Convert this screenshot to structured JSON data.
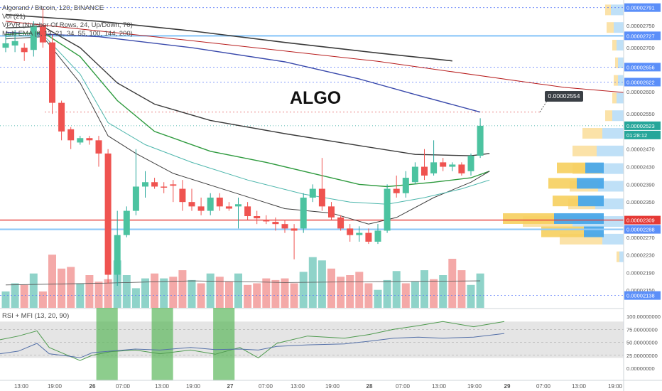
{
  "header": {
    "symbol_line": "Algorand / Bitcoin, 120, BINANCE",
    "vol_line": "Vol (21)",
    "vpvr_line": "VPVR (Number Of Rows, 24, Up/Down, 70)",
    "ma_line": "Multi EMA (8, 13, 21, 34, 55, 100, 144, 200)",
    "rsi_line": "RSI + MFI (13, 20, 90)"
  },
  "annotation": {
    "text": "ALGO",
    "callout_value": "0.00002554"
  },
  "colors": {
    "up": "#26a69a",
    "up_fill": "#4cc3a0",
    "down": "#ef5350",
    "vol_up": "#8fd3c9",
    "vol_down": "#f4a9a8",
    "support_line": "#e53935",
    "blue_line": "#90caf9",
    "dotted_red": "#e57373",
    "dotted_blue": "#5c7cfa",
    "rsi_line": "#4e9a4e",
    "mfi_line": "#5470a8"
  },
  "chart_data": [
    {
      "type": "candlestick",
      "title": "Algorand / Bitcoin, 120, BINANCE",
      "ylim": [
        2.11e-05,
        2.805e-05
      ],
      "price_axis_ticks": [
        "0.00002750",
        "0.00002700",
        "0.00002600",
        "0.00002550",
        "0.00002470",
        "0.00002430",
        "0.00002390",
        "0.00002350",
        "0.00002270",
        "0.00002230",
        "0.00002190",
        "0.00002150"
      ],
      "highlighted_levels": [
        {
          "label": "0.00002791",
          "value": 2.791e-05
        },
        {
          "label": "0.00002727",
          "value": 2.727e-05
        },
        {
          "label": "0.00002656",
          "value": 2.656e-05
        },
        {
          "label": "0.00002622",
          "value": 2.622e-05
        },
        {
          "label": "0.00002554",
          "value": 2.554e-05
        },
        {
          "label": "0.00002523",
          "value": 2.523e-05
        },
        {
          "label": "01:28:12",
          "value": 2.502e-05
        },
        {
          "label": "0.00002309",
          "value": 2.309e-05
        },
        {
          "label": "0.00002288",
          "value": 2.288e-05
        },
        {
          "label": "0.00002138",
          "value": 2.138e-05
        }
      ],
      "x_tick_labels": [
        "13:00",
        "19:00",
        "26",
        "07:00",
        "13:00",
        "19:00",
        "27",
        "07:00",
        "13:00",
        "19:00",
        "28",
        "07:00",
        "13:00",
        "19:00",
        "29",
        "07:00",
        "13:00",
        "19:00"
      ],
      "candles": [
        {
          "o": 2.7e-05,
          "h": 2.73e-05,
          "l": 2.69e-05,
          "c": 2.71e-05
        },
        {
          "o": 2.705e-05,
          "h": 2.74e-05,
          "l": 2.69e-05,
          "c": 2.715e-05
        },
        {
          "o": 2.7e-05,
          "h": 2.71e-05,
          "l": 2.67e-05,
          "c": 2.69e-05
        },
        {
          "o": 2.695e-05,
          "h": 2.76e-05,
          "l": 2.68e-05,
          "c": 2.75e-05
        },
        {
          "o": 2.75e-05,
          "h": 2.79e-05,
          "l": 2.7e-05,
          "c": 2.712e-05
        },
        {
          "o": 2.712e-05,
          "h": 2.73e-05,
          "l": 2.55e-05,
          "c": 2.575e-05
        },
        {
          "o": 2.575e-05,
          "h": 2.58e-05,
          "l": 2.49e-05,
          "c": 2.51e-05
        },
        {
          "o": 2.515e-05,
          "h": 2.52e-05,
          "l": 2.47e-05,
          "c": 2.49e-05
        },
        {
          "o": 2.485e-05,
          "h": 2.5e-05,
          "l": 2.48e-05,
          "c": 2.495e-05
        },
        {
          "o": 2.495e-05,
          "h": 2.5e-05,
          "l": 2.48e-05,
          "c": 2.49e-05
        },
        {
          "o": 2.49e-05,
          "h": 2.5e-05,
          "l": 2.43e-05,
          "c": 2.46e-05
        },
        {
          "o": 2.46e-05,
          "h": 2.47e-05,
          "l": 2.165e-05,
          "c": 2.185e-05
        },
        {
          "o": 2.185e-05,
          "h": 2.33e-05,
          "l": 2.16e-05,
          "c": 2.275e-05
        },
        {
          "o": 2.275e-05,
          "h": 2.34e-05,
          "l": 2.27e-05,
          "c": 2.33e-05
        },
        {
          "o": 2.33e-05,
          "h": 2.47e-05,
          "l": 2.32e-05,
          "c": 2.385e-05
        },
        {
          "o": 2.385e-05,
          "h": 2.42e-05,
          "l": 2.36e-05,
          "c": 2.395e-05
        },
        {
          "o": 2.395e-05,
          "h": 2.405e-05,
          "l": 2.38e-05,
          "c": 2.385e-05
        },
        {
          "o": 2.385e-05,
          "h": 2.395e-05,
          "l": 2.37e-05,
          "c": 2.383e-05
        },
        {
          "o": 2.39e-05,
          "h": 2.4e-05,
          "l": 2.35e-05,
          "c": 2.387e-05
        },
        {
          "o": 2.38e-05,
          "h": 2.4e-05,
          "l": 2.33e-05,
          "c": 2.35e-05
        },
        {
          "o": 2.35e-05,
          "h": 2.38e-05,
          "l": 2.33e-05,
          "c": 2.34e-05
        },
        {
          "o": 2.34e-05,
          "h": 2.36e-05,
          "l": 2.32e-05,
          "c": 2.33e-05
        },
        {
          "o": 2.33e-05,
          "h": 2.37e-05,
          "l": 2.32e-05,
          "c": 2.36e-05
        },
        {
          "o": 2.36e-05,
          "h": 2.37e-05,
          "l": 2.33e-05,
          "c": 2.34e-05
        },
        {
          "o": 2.34e-05,
          "h": 2.35e-05,
          "l": 2.33e-05,
          "c": 2.335e-05
        },
        {
          "o": 2.34e-05,
          "h": 2.36e-05,
          "l": 2.29e-05,
          "c": 2.345e-05
        },
        {
          "o": 2.34e-05,
          "h": 2.35e-05,
          "l": 2.31e-05,
          "c": 2.318e-05
        },
        {
          "o": 2.318e-05,
          "h": 2.33e-05,
          "l": 2.3e-05,
          "c": 2.313e-05
        },
        {
          "o": 2.31e-05,
          "h": 2.32e-05,
          "l": 2.3e-05,
          "c": 2.306e-05
        },
        {
          "o": 2.305e-05,
          "h": 2.315e-05,
          "l": 2.285e-05,
          "c": 2.3e-05
        },
        {
          "o": 2.3e-05,
          "h": 2.31e-05,
          "l": 2.28e-05,
          "c": 2.29e-05
        },
        {
          "o": 2.29e-05,
          "h": 2.3e-05,
          "l": 2.22e-05,
          "c": 2.285e-05
        },
        {
          "o": 2.29e-05,
          "h": 2.37e-05,
          "l": 2.28e-05,
          "c": 2.36e-05
        },
        {
          "o": 2.36e-05,
          "h": 2.39e-05,
          "l": 2.35e-05,
          "c": 2.38e-05
        },
        {
          "o": 2.38e-05,
          "h": 2.45e-05,
          "l": 2.33e-05,
          "c": 2.34e-05
        },
        {
          "o": 2.34e-05,
          "h": 2.35e-05,
          "l": 2.31e-05,
          "c": 2.315e-05
        },
        {
          "o": 2.315e-05,
          "h": 2.32e-05,
          "l": 2.285e-05,
          "c": 2.29e-05
        },
        {
          "o": 2.29e-05,
          "h": 2.3e-05,
          "l": 2.26e-05,
          "c": 2.275e-05
        },
        {
          "o": 2.275e-05,
          "h": 2.295e-05,
          "l": 2.26e-05,
          "c": 2.28e-05
        },
        {
          "o": 2.28e-05,
          "h": 2.29e-05,
          "l": 2.255e-05,
          "c": 2.26e-05
        },
        {
          "o": 2.26e-05,
          "h": 2.3e-05,
          "l": 2.255e-05,
          "c": 2.285e-05
        },
        {
          "o": 2.285e-05,
          "h": 2.39e-05,
          "l": 2.28e-05,
          "c": 2.38e-05
        },
        {
          "o": 2.38e-05,
          "h": 2.41e-05,
          "l": 2.36e-05,
          "c": 2.37e-05
        },
        {
          "o": 2.37e-05,
          "h": 2.42e-05,
          "l": 2.36e-05,
          "c": 2.405e-05
        },
        {
          "o": 2.395e-05,
          "h": 2.44e-05,
          "l": 2.39e-05,
          "c": 2.43e-05
        },
        {
          "o": 2.43e-05,
          "h": 2.47e-05,
          "l": 2.4e-05,
          "c": 2.41e-05
        },
        {
          "o": 2.415e-05,
          "h": 2.49e-05,
          "l": 2.41e-05,
          "c": 2.44e-05
        },
        {
          "o": 2.44e-05,
          "h": 2.45e-05,
          "l": 2.42e-05,
          "c": 2.43e-05
        },
        {
          "o": 2.43e-05,
          "h": 2.44e-05,
          "l": 2.42e-05,
          "c": 2.435e-05
        },
        {
          "o": 2.435e-05,
          "h": 2.44e-05,
          "l": 2.41e-05,
          "c": 2.415e-05
        },
        {
          "o": 2.42e-05,
          "h": 2.46e-05,
          "l": 2.41e-05,
          "c": 2.455e-05
        },
        {
          "o": 2.455e-05,
          "h": 2.54e-05,
          "l": 2.45e-05,
          "c": 2.523e-05
        }
      ],
      "moving_averages": [
        {
          "color": "#3a3a3a",
          "width": 1.6,
          "values": [
            [
              0,
              2.775e-05
            ],
            [
              10,
              2.76e-05
            ],
            [
              20,
              2.738e-05
            ],
            [
              30,
              2.712e-05
            ],
            [
              40,
              2.688e-05
            ],
            [
              48,
              2.67e-05
            ]
          ]
        },
        {
          "color": "#b71c1c",
          "width": 1.0,
          "values": [
            [
              0,
              2.76e-05
            ],
            [
              20,
              2.716e-05
            ],
            [
              40,
              2.669e-05
            ],
            [
              60,
              2.61e-05
            ],
            [
              69,
              2.594e-05
            ]
          ]
        },
        {
          "color": "#3949ab",
          "width": 1.4,
          "values": [
            [
              0,
              2.735e-05
            ],
            [
              10,
              2.725e-05
            ],
            [
              20,
              2.7e-05
            ],
            [
              30,
              2.668e-05
            ],
            [
              38,
              2.629e-05
            ],
            [
              44,
              2.594e-05
            ],
            [
              51,
              2.554e-05
            ]
          ]
        },
        {
          "color": "#3a3a3a",
          "width": 1.4,
          "values": [
            [
              0,
              2.745e-05
            ],
            [
              4,
              2.748e-05
            ],
            [
              8,
              2.7e-05
            ],
            [
              12,
              2.62e-05
            ],
            [
              16,
              2.572e-05
            ],
            [
              22,
              2.535e-05
            ],
            [
              30,
              2.505e-05
            ],
            [
              38,
              2.478e-05
            ],
            [
              44,
              2.458e-05
            ],
            [
              50,
              2.455e-05
            ],
            [
              52,
              2.46e-05
            ]
          ]
        },
        {
          "color": "#2e9a3e",
          "width": 1.4,
          "values": [
            [
              0,
              2.73e-05
            ],
            [
              4,
              2.735e-05
            ],
            [
              8,
              2.68e-05
            ],
            [
              12,
              2.58e-05
            ],
            [
              16,
              2.51e-05
            ],
            [
              22,
              2.465e-05
            ],
            [
              28,
              2.44e-05
            ],
            [
              33,
              2.415e-05
            ],
            [
              38,
              2.39e-05
            ],
            [
              41,
              2.385e-05
            ],
            [
              46,
              2.395e-05
            ],
            [
              50,
              2.405e-05
            ],
            [
              52,
              2.42e-05
            ]
          ]
        },
        {
          "color": "#3f3f3f",
          "width": 1.0,
          "values": [
            [
              0,
              2.72e-05
            ],
            [
              4,
              2.725e-05
            ],
            [
              8,
              2.62e-05
            ],
            [
              11,
              2.5e-05
            ],
            [
              14,
              2.46e-05
            ],
            [
              18,
              2.415e-05
            ],
            [
              24,
              2.375e-05
            ],
            [
              30,
              2.335e-05
            ],
            [
              35,
              2.325e-05
            ],
            [
              39,
              2.3e-05
            ],
            [
              42,
              2.315e-05
            ],
            [
              46,
              2.36e-05
            ],
            [
              50,
              2.395e-05
            ],
            [
              52,
              2.42e-05
            ]
          ]
        },
        {
          "color": "#4db6ac",
          "width": 1.0,
          "values": [
            [
              0,
              2.725e-05
            ],
            [
              4,
              2.73e-05
            ],
            [
              8,
              2.64e-05
            ],
            [
              11,
              2.53e-05
            ],
            [
              15,
              2.48e-05
            ],
            [
              20,
              2.44e-05
            ],
            [
              26,
              2.4e-05
            ],
            [
              32,
              2.368e-05
            ],
            [
              37,
              2.35e-05
            ],
            [
              41,
              2.345e-05
            ],
            [
              45,
              2.36e-05
            ],
            [
              49,
              2.38e-05
            ],
            [
              52,
              2.4e-05
            ]
          ]
        }
      ]
    },
    {
      "type": "bar",
      "title": "Vol (21)",
      "values": [
        20,
        30,
        28,
        42,
        20,
        65,
        48,
        50,
        30,
        40,
        32,
        35,
        58,
        40,
        24,
        36,
        42,
        36,
        38,
        46,
        34,
        30,
        42,
        38,
        32,
        42,
        28,
        30,
        36,
        34,
        36,
        30,
        44,
        62,
        58,
        48,
        38,
        40,
        44,
        30,
        22,
        34,
        45,
        30,
        32,
        46,
        35,
        40,
        60,
        46,
        28,
        42
      ],
      "up": [
        1,
        1,
        0,
        1,
        0,
        0,
        0,
        0,
        1,
        0,
        0,
        0,
        1,
        1,
        1,
        1,
        0,
        1,
        0,
        0,
        1,
        0,
        1,
        0,
        0,
        1,
        0,
        0,
        0,
        0,
        0,
        0,
        1,
        1,
        1,
        0,
        0,
        0,
        0,
        0,
        1,
        1,
        1,
        0,
        1,
        1,
        0,
        1,
        0,
        0,
        1,
        1
      ],
      "vol_ma": [
        [
          0,
          28
        ],
        [
          10,
          30
        ],
        [
          20,
          33
        ],
        [
          30,
          31
        ],
        [
          40,
          32
        ],
        [
          51,
          33
        ]
      ]
    },
    {
      "type": "line",
      "title": "RSI + MFI (13, 20, 90)",
      "ylim": [
        0,
        100
      ],
      "y_tick_labels": [
        "100.00000000",
        "75.00000000",
        "50.00000000",
        "25.00000000",
        "0.00000000"
      ],
      "series": [
        {
          "key": "rsi",
          "values": [
            [
              0,
              55
            ],
            [
              3,
              62
            ],
            [
              6,
              72
            ],
            [
              8,
              40
            ],
            [
              12,
              20
            ],
            [
              13,
              15
            ],
            [
              15,
              25
            ],
            [
              18,
              32
            ],
            [
              22,
              35
            ],
            [
              26,
              28
            ],
            [
              31,
              35
            ],
            [
              35,
              27
            ],
            [
              39,
              40
            ],
            [
              42,
              20
            ],
            [
              45,
              48
            ],
            [
              50,
              62
            ],
            [
              56,
              58
            ],
            [
              60,
              65
            ],
            [
              64,
              75
            ],
            [
              68,
              82
            ],
            [
              72,
              90
            ],
            [
              77,
              80
            ],
            [
              82,
              90
            ]
          ]
        },
        {
          "key": "mfi",
          "values": [
            [
              0,
              28
            ],
            [
              3,
              33
            ],
            [
              6,
              48
            ],
            [
              8,
              28
            ],
            [
              12,
              22
            ],
            [
              13,
              20
            ],
            [
              15,
              30
            ],
            [
              18,
              33
            ],
            [
              22,
              37
            ],
            [
              26,
              35
            ],
            [
              31,
              40
            ],
            [
              35,
              36
            ],
            [
              39,
              37
            ],
            [
              42,
              35
            ],
            [
              45,
              42
            ],
            [
              50,
              45
            ],
            [
              56,
              47
            ],
            [
              60,
              52
            ],
            [
              64,
              58
            ],
            [
              68,
              60
            ],
            [
              72,
              58
            ],
            [
              77,
              60
            ],
            [
              82,
              67
            ]
          ]
        }
      ],
      "oversold_zones": [
        [
          7,
          13
        ],
        [
          16,
          22
        ],
        [
          26,
          32
        ]
      ]
    }
  ]
}
